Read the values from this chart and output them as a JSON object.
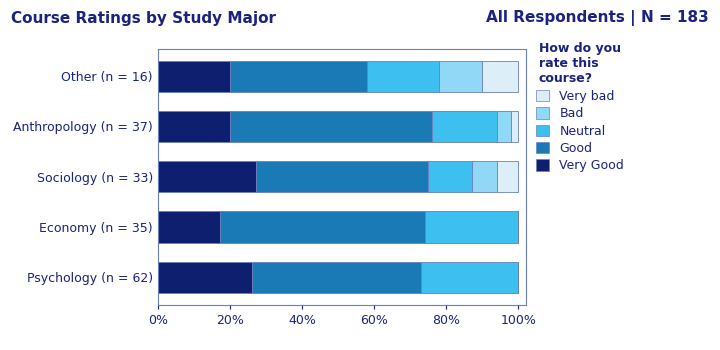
{
  "title_left": "Course Ratings by Study Major",
  "title_right": "All Respondents | N = 183",
  "legend_title": "How do you\nrate this\ncourse?",
  "categories": [
    "Other (n = 16)",
    "Anthropology (n = 37)",
    "Sociology (n = 33)",
    "Economy (n = 35)",
    "Psychology (n = 62)"
  ],
  "segments": {
    "Very Good": [
      20,
      20,
      27,
      17,
      26
    ],
    "Good": [
      38,
      56,
      48,
      57,
      47
    ],
    "Neutral": [
      20,
      18,
      12,
      26,
      27
    ],
    "Bad": [
      12,
      4,
      7,
      0,
      0
    ],
    "Very bad": [
      10,
      2,
      6,
      0,
      0
    ]
  },
  "colors": {
    "Very Good": "#0d1f6e",
    "Good": "#1a7ab5",
    "Neutral": "#3dbfef",
    "Bad": "#90d8f5",
    "Very bad": "#dceef8"
  },
  "segment_order": [
    "Very Good",
    "Good",
    "Neutral",
    "Bad",
    "Very bad"
  ],
  "legend_order": [
    "Very bad",
    "Bad",
    "Neutral",
    "Good",
    "Very Good"
  ],
  "xlabel_ticks": [
    0,
    20,
    40,
    60,
    80,
    100
  ],
  "xlabel_labels": [
    "0%",
    "20%",
    "40%",
    "60%",
    "80%",
    "100%"
  ],
  "background_color": "#ffffff",
  "plot_bg_color": "#ffffff",
  "text_color": "#1a237e",
  "border_color": "#6b7fbd",
  "title_fontsize": 11,
  "label_fontsize": 9,
  "tick_fontsize": 9,
  "legend_fontsize": 9
}
